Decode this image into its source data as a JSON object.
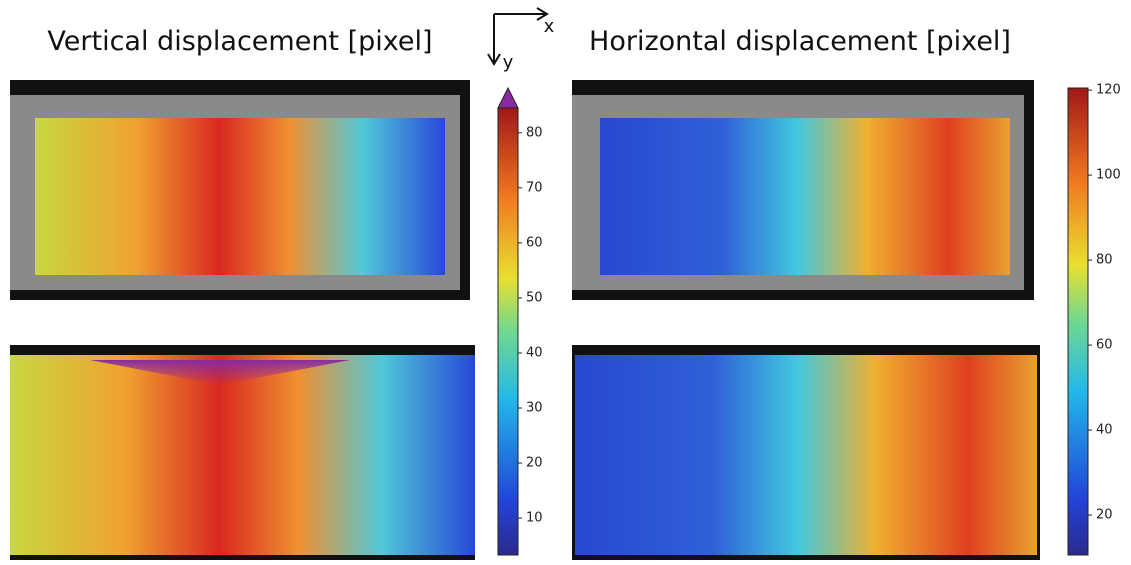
{
  "titles": [
    "Vertical displacement [pixel]",
    "Horizontal displacement [pixel]"
  ],
  "axes": {
    "x": "x",
    "y": "y"
  },
  "colorbars": [
    {
      "lim": [
        3.3,
        84.5
      ],
      "ticks": [
        10,
        20,
        30,
        40,
        50,
        60,
        70,
        80
      ]
    },
    {
      "lim": [
        10.6,
        120.5
      ],
      "ticks": [
        20,
        40,
        60,
        80,
        100,
        120
      ]
    }
  ]
}
